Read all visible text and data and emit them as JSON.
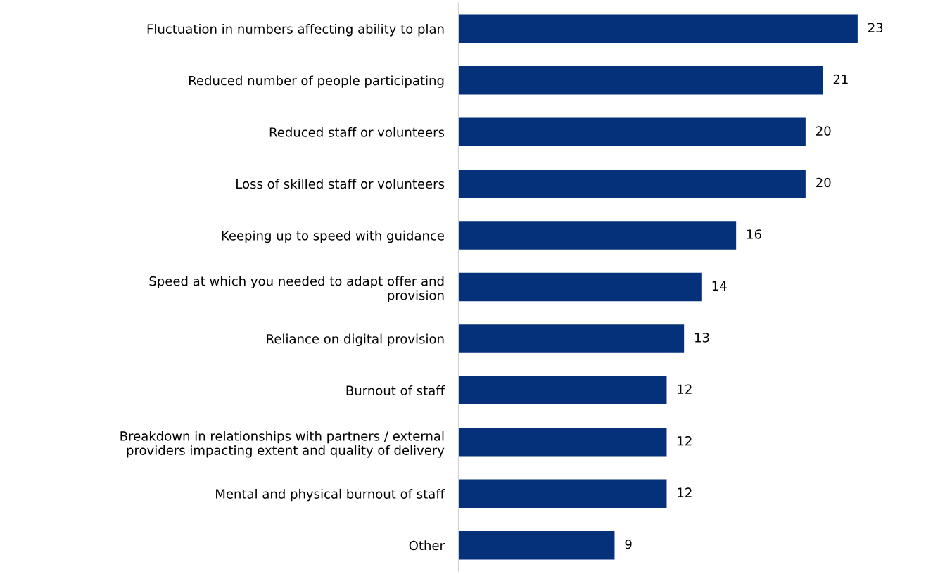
{
  "chart_data": {
    "type": "bar",
    "orientation": "horizontal",
    "data_labels": true,
    "grid": false,
    "legend": false,
    "tick_labels": "y",
    "categories": [
      "Fluctuation in numbers affecting ability to plan",
      "Reduced number of people participating",
      "Reduced staff or volunteers",
      "Loss of skilled staff or volunteers",
      "Keeping up to speed with guidance",
      "Speed at which you needed to adapt offer and provision",
      "Reliance on digital provision",
      "Burnout of staff",
      "Breakdown in relationships with partners / external providers impacting extent and quality of delivery",
      "Mental and physical burnout of staff",
      "Other"
    ],
    "series": [
      {
        "color": "#05307a",
        "values": [
          23,
          21,
          20,
          20,
          16,
          14,
          13,
          12,
          12,
          12,
          9
        ]
      }
    ]
  }
}
